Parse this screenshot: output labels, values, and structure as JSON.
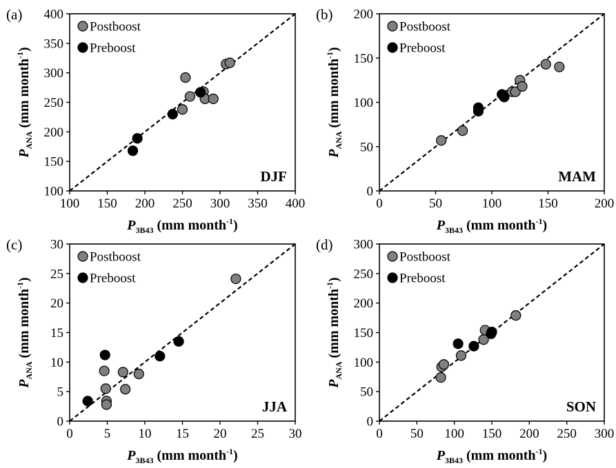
{
  "colors": {
    "postboost": "#808080",
    "preboost": "#000000",
    "outline": "#000000"
  },
  "chart_data": [
    {
      "type": "scatter",
      "panel": "(a)",
      "season": "DJF",
      "xlabel_main": "P",
      "xlabel_sub": "3B43",
      "xlabel_unit": " (mm month",
      "xlabel_sup": "-1",
      "xlabel_end": ")",
      "ylabel_main": "P",
      "ylabel_sub": "ANA",
      "ylabel_unit": " (mm month",
      "ylabel_sup": "-1",
      "ylabel_end": ")",
      "xlim": [
        100,
        400
      ],
      "ylim": [
        100,
        400
      ],
      "xticks": [
        100,
        150,
        200,
        250,
        300,
        350,
        400
      ],
      "yticks": [
        100,
        150,
        200,
        250,
        300,
        350,
        400
      ],
      "one_to_one_line": true,
      "legend": "top-left",
      "series": [
        {
          "name": "Postboost",
          "color": "#808080",
          "x": [
            254,
            260,
            250,
            278,
            280,
            291,
            308,
            313
          ],
          "y": [
            292,
            260,
            238,
            268,
            256,
            256,
            315,
            317
          ]
        },
        {
          "name": "Preboost",
          "color": "#000000",
          "x": [
            184,
            190,
            237,
            274
          ],
          "y": [
            168,
            189,
            230,
            267
          ]
        }
      ]
    },
    {
      "type": "scatter",
      "panel": "(b)",
      "season": "MAM",
      "xlabel_main": "P",
      "xlabel_sub": "3B43",
      "xlabel_unit": " (mm month",
      "xlabel_sup": "-1",
      "xlabel_end": ")",
      "ylabel_main": "P",
      "ylabel_sub": "ANA",
      "ylabel_unit": " (mm month",
      "ylabel_sup": "-1",
      "ylabel_end": ")",
      "xlim": [
        0,
        200
      ],
      "ylim": [
        0,
        200
      ],
      "xticks": [
        0,
        50,
        100,
        150,
        200
      ],
      "yticks": [
        0,
        50,
        100,
        150,
        200
      ],
      "one_to_one_line": true,
      "legend": "top-left",
      "series": [
        {
          "name": "Postboost",
          "color": "#808080",
          "x": [
            55,
            74,
            118,
            121,
            125,
            127,
            148,
            160
          ],
          "y": [
            57,
            68,
            112,
            112,
            125,
            118,
            143,
            140
          ]
        },
        {
          "name": "Preboost",
          "color": "#000000",
          "x": [
            88,
            88,
            109,
            111
          ],
          "y": [
            94,
            90,
            109,
            106
          ]
        }
      ]
    },
    {
      "type": "scatter",
      "panel": "(c)",
      "season": "JJA",
      "xlabel_main": "P",
      "xlabel_sub": "3B43",
      "xlabel_unit": " (mm month",
      "xlabel_sup": "-1",
      "xlabel_end": ")",
      "ylabel_main": "P",
      "ylabel_sub": "ANA",
      "ylabel_unit": " (mm month",
      "ylabel_sup": "-1",
      "ylabel_end": ")",
      "xlim": [
        0,
        30
      ],
      "ylim": [
        0,
        30
      ],
      "xticks": [
        0,
        5,
        10,
        15,
        20,
        25,
        30
      ],
      "yticks": [
        0,
        5,
        10,
        15,
        20,
        25,
        30
      ],
      "one_to_one_line": true,
      "legend": "top-left",
      "series": [
        {
          "name": "Postboost",
          "color": "#808080",
          "x": [
            4.6,
            4.8,
            4.9,
            4.9,
            7.1,
            7.4,
            9.2,
            22.1
          ],
          "y": [
            8.5,
            5.5,
            3.4,
            2.8,
            8.3,
            5.4,
            8.0,
            24.1
          ]
        },
        {
          "name": "Preboost",
          "color": "#000000",
          "x": [
            2.4,
            4.7,
            12.0,
            14.5
          ],
          "y": [
            3.4,
            11.2,
            11.0,
            13.5
          ]
        }
      ]
    },
    {
      "type": "scatter",
      "panel": "(d)",
      "season": "SON",
      "xlabel_main": "P",
      "xlabel_sub": "3B43",
      "xlabel_unit": " (mm month",
      "xlabel_sup": "-1",
      "xlabel_end": ")",
      "ylabel_main": "P",
      "ylabel_sub": "ANA",
      "ylabel_unit": " (mm month",
      "ylabel_sup": "-1",
      "ylabel_end": ")",
      "xlim": [
        0,
        300
      ],
      "ylim": [
        0,
        300
      ],
      "xticks": [
        0,
        50,
        100,
        150,
        200,
        250,
        300
      ],
      "yticks": [
        0,
        50,
        100,
        150,
        200,
        250,
        300
      ],
      "one_to_one_line": true,
      "legend": "top-left",
      "series": [
        {
          "name": "Postboost",
          "color": "#808080",
          "x": [
            82,
            83,
            86,
            109,
            139,
            141,
            182
          ],
          "y": [
            74,
            92,
            96,
            111,
            138,
            154,
            179
          ]
        },
        {
          "name": "Preboost",
          "color": "#000000",
          "x": [
            105,
            126,
            149,
            150
          ],
          "y": [
            131,
            127,
            148,
            151
          ]
        }
      ]
    }
  ]
}
